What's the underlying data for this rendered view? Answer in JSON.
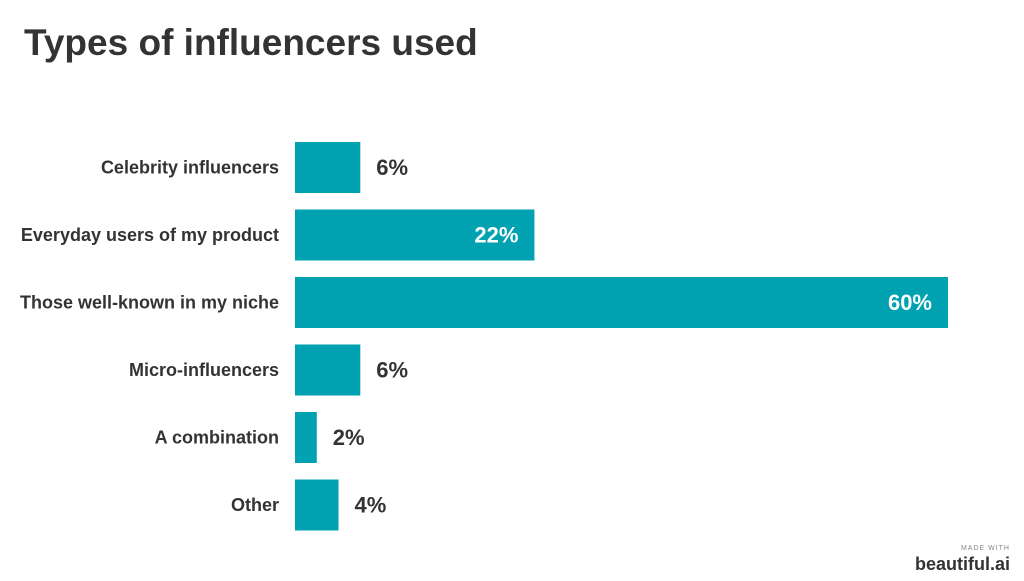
{
  "chart_data": {
    "type": "bar",
    "orientation": "horizontal",
    "title": "Types of influencers used",
    "categories": [
      "Celebrity influencers",
      "Everyday users of my product",
      "Those well-known in my niche",
      "Micro-influencers",
      "A combination",
      "Other"
    ],
    "values": [
      6,
      22,
      60,
      6,
      2,
      4
    ],
    "value_labels": [
      "6%",
      "22%",
      "60%",
      "6%",
      "2%",
      "4%"
    ],
    "unit": "%",
    "xlim": [
      0,
      60
    ],
    "grid": false,
    "legend": "none",
    "colors": {
      "bar": "#00A1B1",
      "label_outside": "#333333",
      "label_inside": "#ffffff"
    }
  },
  "watermark": {
    "small": "MADE WITH",
    "brand": "beautiful.ai"
  }
}
